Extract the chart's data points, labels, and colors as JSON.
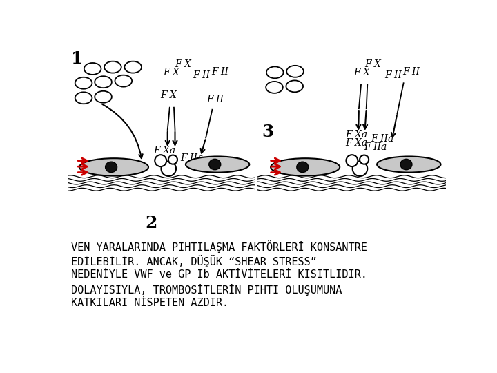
{
  "background_color": "#ffffff",
  "text_block": "VEN YARALARINDA PIHTILAŞMA FAKTÖRLERİ KONSANTRE\nEDİLEBİLİR. ANCAK, DÜŞÜK “SHEAR STRESS”\nNEDENİYLE VWF ve GP Ib AKTİVİTELERİ KISITLIDIR.\nDOLAYISIYLA, TROMBOSİTLERİN PIHTI OLUŞUMUNA\nKATKILARI NİSPETEN AZDIR.",
  "label1": "1",
  "label2": "2",
  "label3": "3",
  "red_arrow_color": "#cc0000",
  "black_color": "#000000",
  "gray_platelet": "#c8c8c8",
  "platelet_nucleus": "#111111",
  "font_size_label": 18,
  "font_size_factor": 10,
  "font_size_text": 11
}
